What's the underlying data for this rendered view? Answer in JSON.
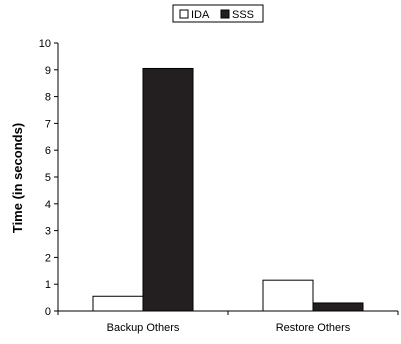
{
  "chart_data": {
    "type": "bar",
    "categories": [
      "Backup Others",
      "Restore Others"
    ],
    "series": [
      {
        "name": "IDA",
        "values": [
          0.55,
          1.15
        ],
        "color": "#ffffff"
      },
      {
        "name": "SSS",
        "values": [
          9.05,
          0.3
        ],
        "color": "#231f20"
      }
    ],
    "xlabel": "",
    "ylabel": "Time (in seconds)",
    "ylim": [
      0,
      10
    ],
    "yticks": [
      0,
      1,
      2,
      3,
      4,
      5,
      6,
      7,
      8,
      9,
      10
    ],
    "grid": false,
    "legend": "top-center"
  }
}
